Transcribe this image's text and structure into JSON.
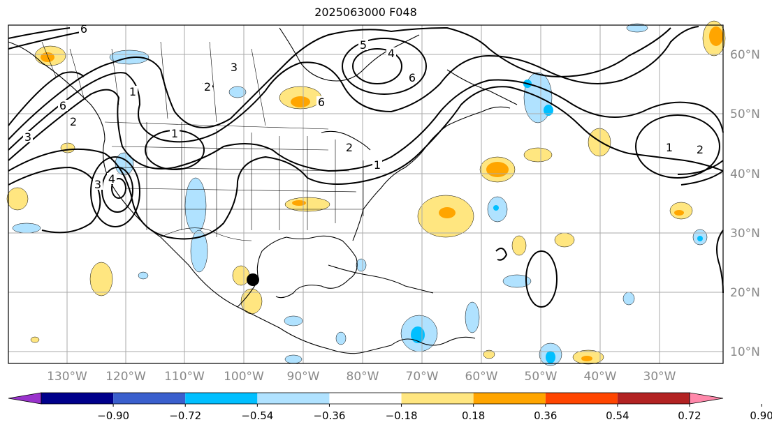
{
  "title": "2025063000 F048",
  "map": {
    "lon_labels": [
      "130°W",
      "120°W",
      "110°W",
      "100°W",
      "90°W",
      "80°W",
      "70°W",
      "60°W",
      "50°W",
      "40°W",
      "30°W"
    ],
    "lat_labels": [
      "60°N",
      "50°N",
      "40°N",
      "30°N",
      "20°N",
      "10°N"
    ],
    "contour_labels": [
      "6",
      "6",
      "2",
      "1",
      "1",
      "6",
      "4",
      "3",
      "2",
      "4",
      "3",
      "1",
      "1",
      "2",
      "2",
      "5",
      "6",
      "3"
    ],
    "marker": "black-dot-site"
  },
  "colorbar": {
    "ticks": [
      "−0.90",
      "−0.72",
      "−0.54",
      "−0.36",
      "−0.18",
      "0.18",
      "0.36",
      "0.54",
      "0.72",
      "0.90"
    ],
    "colors": [
      "#9932cc",
      "#00008b",
      "#3a5fcd",
      "#00bfff",
      "#b0e2ff",
      "#ffffff",
      "#ffe680",
      "#ffa500",
      "#ff4500",
      "#b22222",
      "#ff88aa"
    ]
  }
}
